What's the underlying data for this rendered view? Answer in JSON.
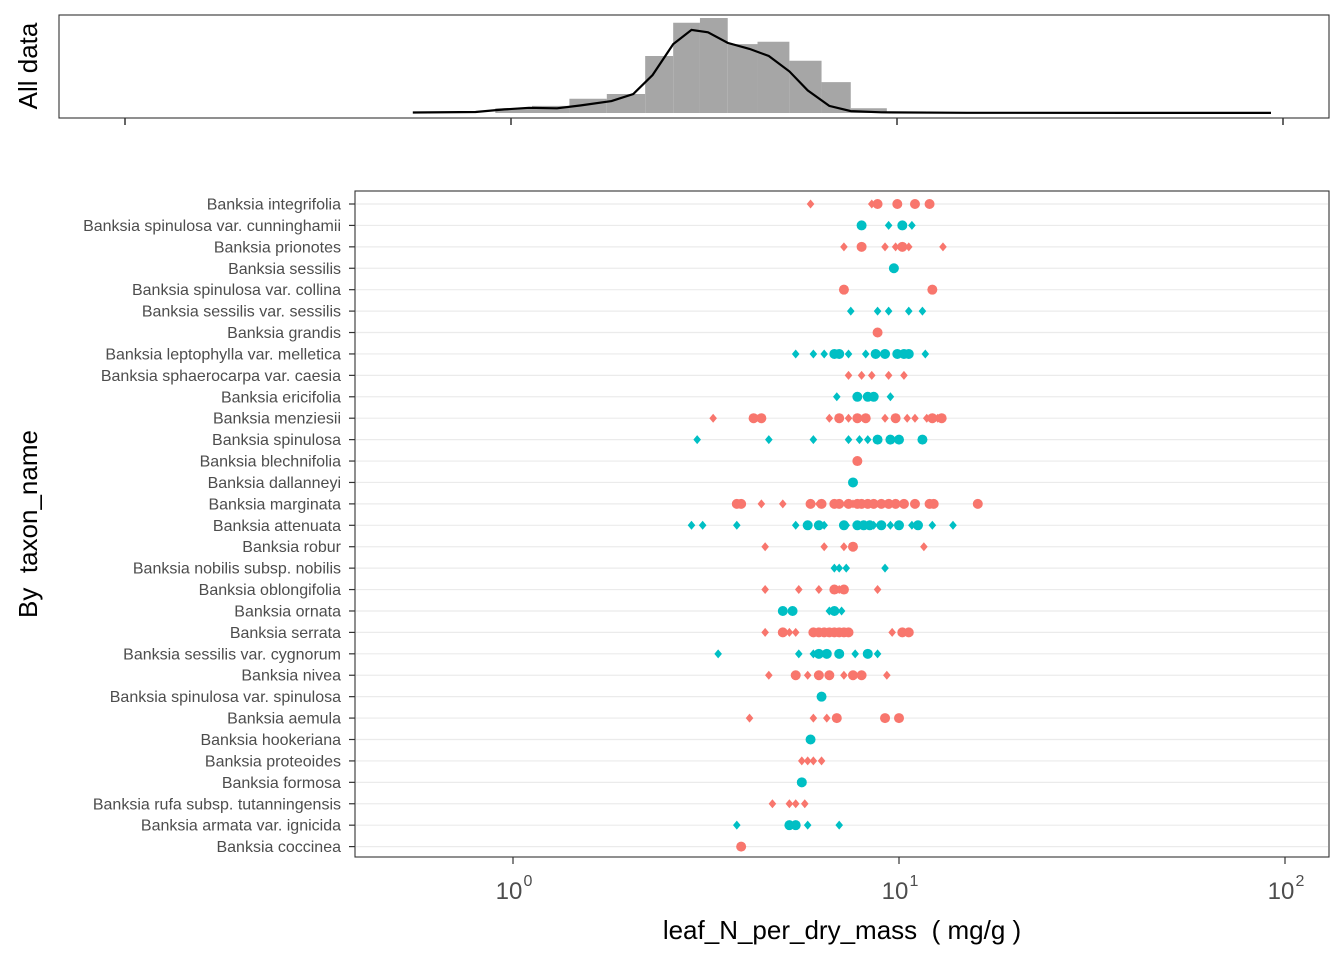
{
  "chart_data": [
    {
      "type": "histogram",
      "panel": "all-data",
      "ylabel": "All data",
      "x_scale": "log10",
      "xlim": [
        0.4,
        100
      ],
      "bins": [
        {
          "x0": 0.9,
          "x1": 1.12,
          "count": 2
        },
        {
          "x0": 1.12,
          "x1": 1.4,
          "count": 3
        },
        {
          "x0": 1.4,
          "x1": 1.75,
          "count": 6
        },
        {
          "x0": 1.75,
          "x1": 2.2,
          "count": 8
        },
        {
          "x0": 2.2,
          "x1": 2.6,
          "count": 24
        },
        {
          "x0": 2.6,
          "x1": 3.05,
          "count": 38
        },
        {
          "x0": 3.05,
          "x1": 3.6,
          "count": 40
        },
        {
          "x0": 3.6,
          "x1": 4.3,
          "count": 29
        },
        {
          "x0": 4.3,
          "x1": 5.2,
          "count": 30
        },
        {
          "x0": 5.2,
          "x1": 6.3,
          "count": 22
        },
        {
          "x0": 6.3,
          "x1": 7.5,
          "count": 13
        },
        {
          "x0": 7.5,
          "x1": 9.3,
          "count": 2
        }
      ],
      "density": [
        [
          0.55,
          0.2
        ],
        [
          0.8,
          0.4
        ],
        [
          0.95,
          1.5
        ],
        [
          1.1,
          2.2
        ],
        [
          1.3,
          2.0
        ],
        [
          1.5,
          3.2
        ],
        [
          1.8,
          5.0
        ],
        [
          2.05,
          8.0
        ],
        [
          2.3,
          16.0
        ],
        [
          2.6,
          29.0
        ],
        [
          2.9,
          35.0
        ],
        [
          3.2,
          34.0
        ],
        [
          3.6,
          29.5
        ],
        [
          4.1,
          27.0
        ],
        [
          4.6,
          24.0
        ],
        [
          5.2,
          17.5
        ],
        [
          5.8,
          9.5
        ],
        [
          6.6,
          3.0
        ],
        [
          7.5,
          0.8
        ],
        [
          9.0,
          0.3
        ],
        [
          15.0,
          0.1
        ],
        [
          40.0,
          0.05
        ],
        [
          92.0,
          0.05
        ]
      ]
    },
    {
      "type": "scatter",
      "panel": "by-taxon",
      "xlabel": "leaf_N_per_dry_mass  ( mg/g )",
      "ylabel": "By  taxon_name",
      "x_scale": "log10",
      "xlim": [
        0.4,
        100
      ],
      "x_ticks": [
        {
          "base": "10",
          "exp": "0"
        },
        {
          "base": "10",
          "exp": "1"
        },
        {
          "base": "10",
          "exp": "2"
        }
      ],
      "grid": true,
      "legend": "none",
      "colors": {
        "red": "#f8766d",
        "teal": "#00bfc4"
      },
      "series": [
        {
          "taxon": "Banksia integrifolia",
          "color": "red",
          "diamonds": [
            5.9,
            8.5
          ],
          "circles": [
            8.8,
            9.9,
            11.0,
            12.0
          ]
        },
        {
          "taxon": "Banksia spinulosa var. cunninghamii",
          "color": "teal",
          "diamonds": [
            9.4,
            10.8
          ],
          "circles": [
            8.0,
            10.2
          ]
        },
        {
          "taxon": "Banksia prionotes",
          "color": "red",
          "diamonds": [
            7.2,
            9.2,
            9.8,
            10.6,
            13.0
          ],
          "circles": [
            8.0,
            10.2
          ]
        },
        {
          "taxon": "Banksia sessilis",
          "color": "teal",
          "diamonds": [],
          "circles": [
            9.7
          ]
        },
        {
          "taxon": "Banksia spinulosa var. collina",
          "color": "red",
          "diamonds": [],
          "circles": [
            7.2,
            12.2
          ]
        },
        {
          "taxon": "Banksia sessilis var. sessilis",
          "color": "teal",
          "diamonds": [
            7.5,
            8.8,
            9.4,
            10.6,
            11.5
          ],
          "circles": []
        },
        {
          "taxon": "Banksia grandis",
          "color": "red",
          "diamonds": [],
          "circles": [
            8.8
          ]
        },
        {
          "taxon": "Banksia leptophylla var. melletica",
          "color": "teal",
          "diamonds": [
            5.4,
            6.0,
            6.4,
            7.4,
            8.2,
            11.7
          ],
          "circles": [
            6.8,
            7.0,
            8.7,
            9.2,
            9.9,
            10.3,
            10.6
          ]
        },
        {
          "taxon": "Banksia sphaerocarpa var. caesia",
          "color": "red",
          "diamonds": [
            7.4,
            8.0,
            8.5,
            9.4,
            10.3
          ],
          "circles": []
        },
        {
          "taxon": "Banksia ericifolia",
          "color": "teal",
          "diamonds": [
            6.9,
            9.5
          ],
          "circles": [
            7.8,
            8.3,
            8.6
          ]
        },
        {
          "taxon": "Banksia menziesii",
          "color": "red",
          "diamonds": [
            3.3,
            6.6,
            7.4,
            9.2,
            10.5,
            11.0,
            11.8,
            12.6
          ],
          "circles": [
            4.2,
            4.4,
            7.0,
            7.8,
            8.2,
            9.8,
            12.2,
            12.9
          ]
        },
        {
          "taxon": "Banksia spinulosa",
          "color": "teal",
          "diamonds": [
            3.0,
            4.6,
            6.0,
            7.4,
            7.9,
            8.3
          ],
          "circles": [
            8.8,
            9.5,
            10.0,
            11.5
          ]
        },
        {
          "taxon": "Banksia blechnifolia",
          "color": "red",
          "diamonds": [],
          "circles": [
            7.8
          ]
        },
        {
          "taxon": "Banksia dallanneyi",
          "color": "teal",
          "diamonds": [],
          "circles": [
            7.6
          ]
        },
        {
          "taxon": "Banksia marginata",
          "color": "red",
          "diamonds": [
            4.4,
            5.0,
            6.2,
            7.6,
            8.4
          ],
          "circles": [
            3.8,
            3.9,
            5.9,
            6.3,
            6.8,
            7.0,
            7.4,
            7.8,
            8.0,
            8.3,
            8.6,
            9.0,
            9.4,
            9.8,
            10.3,
            11.0,
            12.0,
            12.3,
            16.0
          ]
        },
        {
          "taxon": "Banksia attenuata",
          "color": "teal",
          "diamonds": [
            2.9,
            3.1,
            3.8,
            5.4,
            6.4,
            7.3,
            8.6,
            9.5,
            10.8,
            12.2,
            13.8
          ],
          "circles": [
            5.8,
            6.2,
            7.2,
            7.8,
            8.1,
            8.4,
            9.0,
            10.0,
            11.2
          ]
        },
        {
          "taxon": "Banksia robur",
          "color": "red",
          "diamonds": [
            4.5,
            6.4,
            7.2,
            11.6
          ],
          "circles": [
            7.6
          ]
        },
        {
          "taxon": "Banksia nobilis subsp. nobilis",
          "color": "teal",
          "diamonds": [
            6.8,
            7.0,
            7.3,
            9.2
          ],
          "circles": []
        },
        {
          "taxon": "Banksia oblongifolia",
          "color": "red",
          "diamonds": [
            4.5,
            5.5,
            6.2,
            7.0,
            8.8
          ],
          "circles": [
            6.8,
            7.2
          ]
        },
        {
          "taxon": "Banksia ornata",
          "color": "teal",
          "diamonds": [
            6.6,
            7.1
          ],
          "circles": [
            5.0,
            5.3,
            6.8
          ]
        },
        {
          "taxon": "Banksia serrata",
          "color": "red",
          "diamonds": [
            4.5,
            5.2,
            5.4,
            9.6
          ],
          "circles": [
            5.0,
            6.0,
            6.2,
            6.4,
            6.6,
            6.8,
            7.0,
            7.2,
            7.4,
            10.2,
            10.6
          ]
        },
        {
          "taxon": "Banksia sessilis var. cygnorum",
          "color": "teal",
          "diamonds": [
            3.4,
            5.5,
            6.0,
            7.0,
            7.7,
            8.8
          ],
          "circles": [
            6.2,
            6.5,
            7.0,
            8.3
          ]
        },
        {
          "taxon": "Banksia nivea",
          "color": "red",
          "diamonds": [
            4.6,
            5.8,
            7.2,
            9.3
          ],
          "circles": [
            5.4,
            6.2,
            6.6,
            7.6,
            8.0
          ]
        },
        {
          "taxon": "Banksia spinulosa var. spinulosa",
          "color": "teal",
          "diamonds": [],
          "circles": [
            6.3
          ]
        },
        {
          "taxon": "Banksia aemula",
          "color": "red",
          "diamonds": [
            4.1,
            6.0,
            6.5
          ],
          "circles": [
            6.9,
            9.2,
            10.0
          ]
        },
        {
          "taxon": "Banksia hookeriana",
          "color": "teal",
          "diamonds": [],
          "circles": [
            5.9
          ]
        },
        {
          "taxon": "Banksia proteoides",
          "color": "red",
          "diamonds": [
            5.6,
            5.8,
            6.0,
            6.3
          ],
          "circles": []
        },
        {
          "taxon": "Banksia formosa",
          "color": "teal",
          "diamonds": [],
          "circles": [
            5.6
          ]
        },
        {
          "taxon": "Banksia rufa subsp. tutanningensis",
          "color": "red",
          "diamonds": [
            4.7,
            5.2,
            5.4,
            5.7
          ],
          "circles": []
        },
        {
          "taxon": "Banksia armata var. ignicida",
          "color": "teal",
          "diamonds": [
            3.8,
            5.8,
            7.0
          ],
          "circles": [
            5.2,
            5.4
          ]
        },
        {
          "taxon": "Banksia coccinea",
          "color": "red",
          "diamonds": [],
          "circles": [
            3.9
          ]
        }
      ]
    }
  ]
}
